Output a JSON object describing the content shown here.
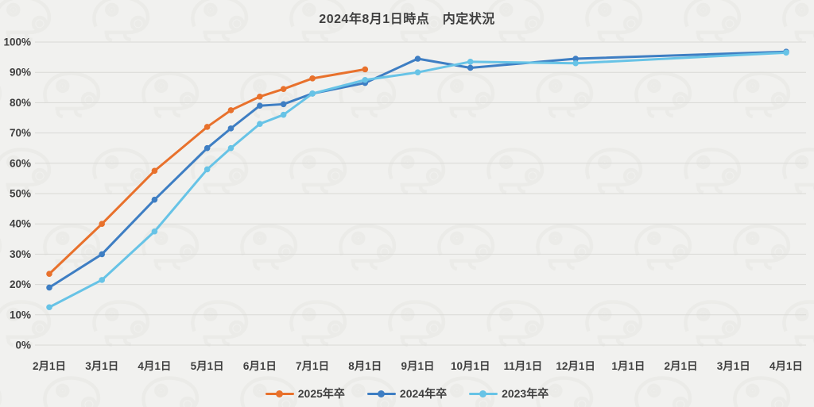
{
  "title": "2024年8月1日時点　内定状況",
  "watermark_icon": "chameleon-outline-pattern",
  "colors": {
    "background": "#F1F1EF",
    "grid": "#D9D9D6",
    "text": "#3F3F3F",
    "watermark": "#E7E7E3",
    "series_2025": "#E8712C",
    "series_2024": "#3E7EC3",
    "series_2023": "#67C3E6"
  },
  "chart_data": {
    "type": "line",
    "title": "2024年8月1日時点　内定状況",
    "xlabel": "",
    "ylabel": "",
    "ylim": [
      0,
      100
    ],
    "grid": true,
    "legend_position": "bottom",
    "y_ticks": [
      "0%",
      "10%",
      "20%",
      "30%",
      "40%",
      "50%",
      "60%",
      "70%",
      "80%",
      "90%",
      "100%"
    ],
    "x_categories": [
      "2月1日",
      "3月1日",
      "4月1日",
      "5月1日",
      "6月1日",
      "7月1日",
      "8月1日",
      "9月1日",
      "10月1日",
      "11月1日",
      "12月1日",
      "1月1日",
      "2月1日",
      "3月1日",
      "4月1日"
    ],
    "x_axis_span_months": 14,
    "series": [
      {
        "name": "2025年卒",
        "color": "#E8712C",
        "x_month_offsets": [
          0,
          1,
          2,
          3,
          3.45,
          4,
          4.45,
          5,
          6
        ],
        "values": [
          23.5,
          40.0,
          57.5,
          72.0,
          77.5,
          82.0,
          84.5,
          88.0,
          91.0
        ]
      },
      {
        "name": "2024年卒",
        "color": "#3E7EC3",
        "x_month_offsets": [
          0,
          1,
          2,
          3,
          3.45,
          4,
          4.45,
          5,
          6,
          7,
          8,
          10,
          14
        ],
        "values": [
          19.0,
          30.0,
          48.0,
          65.0,
          71.5,
          79.0,
          79.5,
          83.0,
          86.5,
          94.5,
          91.5,
          94.5,
          96.8
        ]
      },
      {
        "name": "2023年卒",
        "color": "#67C3E6",
        "x_month_offsets": [
          0,
          1,
          2,
          3,
          3.45,
          4,
          4.45,
          5,
          6,
          7,
          8,
          10,
          14
        ],
        "values": [
          12.5,
          21.5,
          37.5,
          58.0,
          65.0,
          73.0,
          76.0,
          83.0,
          87.5,
          90.0,
          93.5,
          93.0,
          96.5
        ]
      }
    ]
  }
}
